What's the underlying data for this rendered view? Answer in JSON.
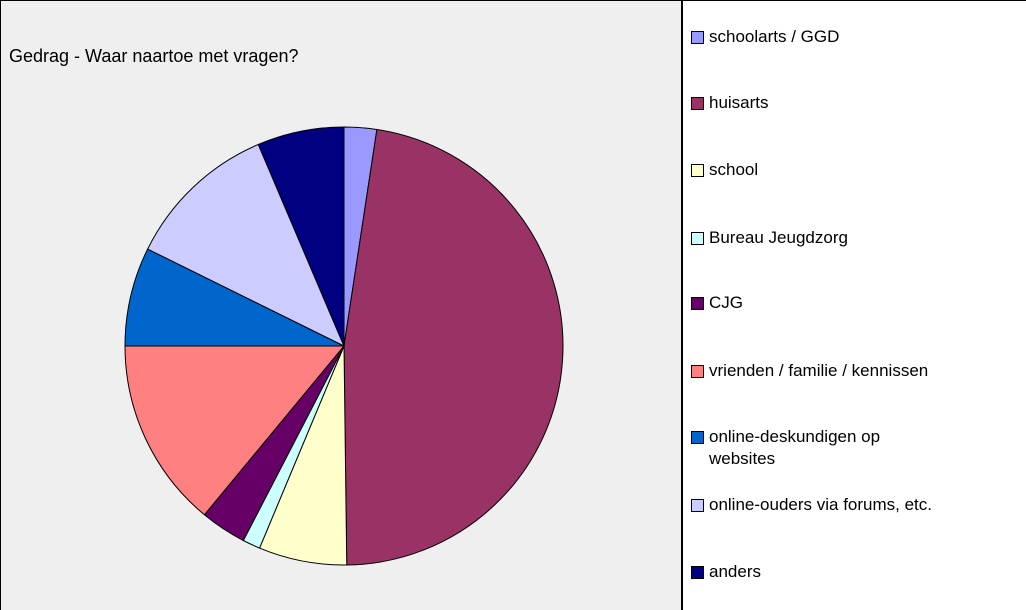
{
  "chart_data": {
    "type": "pie",
    "title": "Gedrag - Waar naartoe met vragen?",
    "categories": [
      "schoolarts / GGD",
      "huisarts",
      "school",
      "Bureau Jeugdzorg",
      "CJG",
      "vrienden / familie / kennissen",
      "online-deskundigen op\nwebsites",
      "online-ouders via forums, etc.",
      "anders"
    ],
    "values": [
      2.4,
      47.4,
      6.5,
      1.3,
      3.4,
      14,
      7.3,
      11.3,
      6.4
    ],
    "colors": [
      "#9999ff",
      "#993366",
      "#ffffcc",
      "#ccffff",
      "#660066",
      "#ff8080",
      "#0066cc",
      "#ccccff",
      "#000080"
    ],
    "legend": "right"
  }
}
